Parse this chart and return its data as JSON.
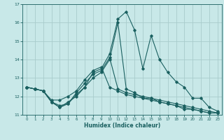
{
  "xlabel": "Humidex (Indice chaleur)",
  "background_color": "#c8e8e8",
  "grid_color": "#a8cccc",
  "line_color": "#1a6060",
  "x_values": [
    0,
    1,
    2,
    3,
    4,
    5,
    6,
    7,
    8,
    9,
    10,
    11,
    12,
    13,
    14,
    15,
    16,
    17,
    18,
    19,
    20,
    21,
    22,
    23
  ],
  "series": [
    [
      12.5,
      12.4,
      12.3,
      11.7,
      11.4,
      11.7,
      12.0,
      12.5,
      13.3,
      13.5,
      14.3,
      16.2,
      16.6,
      15.6,
      13.5,
      15.3,
      14.0,
      13.3,
      12.8,
      12.5,
      11.9,
      11.9,
      11.4,
      11.2
    ],
    [
      12.5,
      12.4,
      12.3,
      11.7,
      11.4,
      11.6,
      12.1,
      12.5,
      13.0,
      13.3,
      14.0,
      16.0,
      12.4,
      12.2,
      11.9,
      11.9,
      11.7,
      11.6,
      11.5,
      11.3,
      11.3,
      11.2,
      11.1,
      11.1
    ],
    [
      12.5,
      12.4,
      12.3,
      11.7,
      11.5,
      11.6,
      12.2,
      12.7,
      13.2,
      13.4,
      14.1,
      12.4,
      12.2,
      12.1,
      12.0,
      11.9,
      11.8,
      11.7,
      11.6,
      11.5,
      11.4,
      11.3,
      11.2,
      11.1
    ],
    [
      12.5,
      12.4,
      12.3,
      11.8,
      11.8,
      12.0,
      12.3,
      12.9,
      13.4,
      13.6,
      12.5,
      12.3,
      12.1,
      12.0,
      11.9,
      11.8,
      11.7,
      11.6,
      11.5,
      11.4,
      11.3,
      11.2,
      11.1,
      11.1
    ]
  ],
  "ylim": [
    11,
    17
  ],
  "yticks": [
    11,
    12,
    13,
    14,
    15,
    16,
    17
  ],
  "xlim": [
    -0.5,
    23.5
  ],
  "xticks": [
    0,
    1,
    2,
    3,
    4,
    5,
    6,
    7,
    8,
    9,
    10,
    11,
    12,
    13,
    14,
    15,
    16,
    17,
    18,
    19,
    20,
    21,
    22,
    23
  ]
}
